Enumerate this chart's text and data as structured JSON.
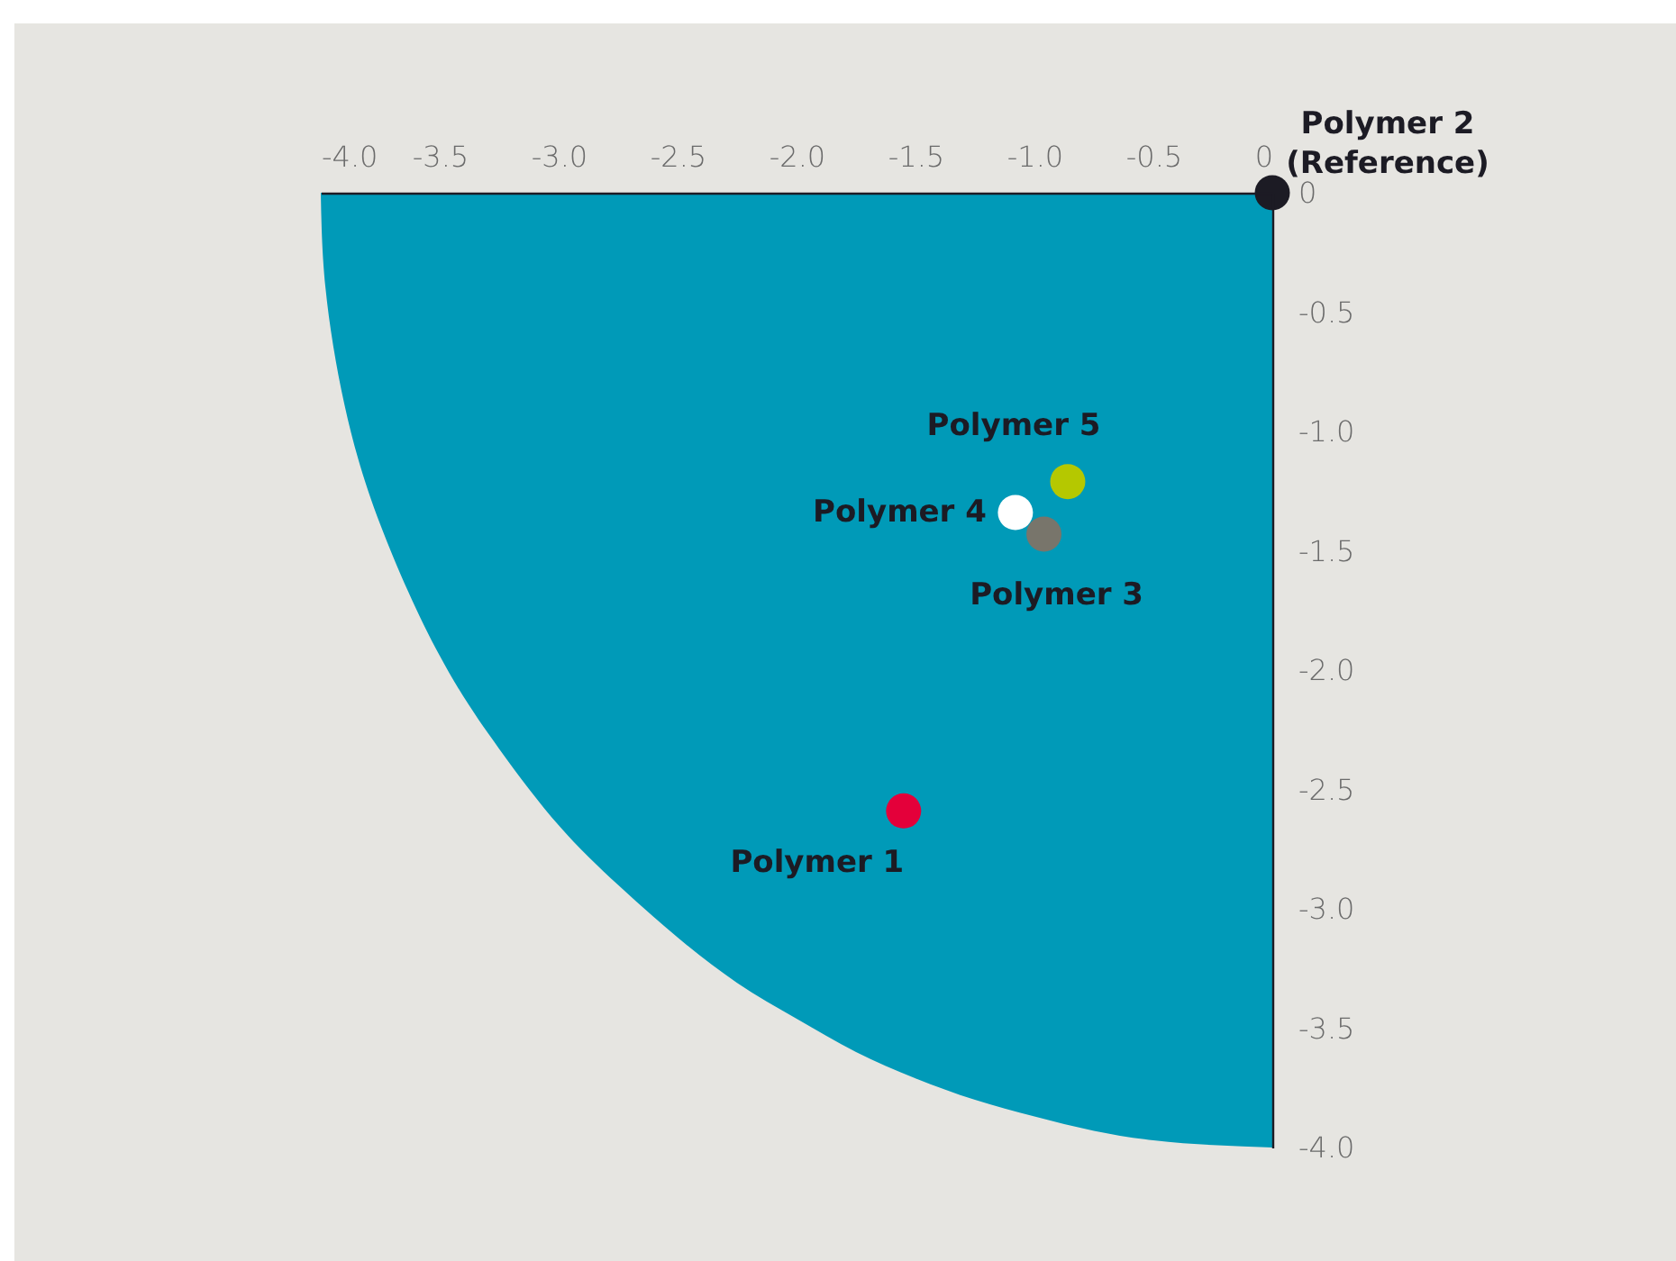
{
  "chart_data": {
    "type": "scatter",
    "grid": false,
    "legend": false,
    "xlim": [
      -4,
      0
    ],
    "ylim": [
      -4,
      0
    ],
    "xticks": [
      {
        "value": -4,
        "label": "-4.0"
      },
      {
        "value": -3.5,
        "label": "-3.5"
      },
      {
        "value": -3,
        "label": "-3.0"
      },
      {
        "value": -2.5,
        "label": "-2.5"
      },
      {
        "value": -2,
        "label": "-2.0"
      },
      {
        "value": -1.5,
        "label": "-1.5"
      },
      {
        "value": -1,
        "label": "-1.0"
      },
      {
        "value": -0.5,
        "label": "-0.5"
      },
      0
    ],
    "yticks": [
      0,
      {
        "value": -0.5,
        "label": "-0.5"
      },
      {
        "value": -1,
        "label": "-1.0"
      },
      {
        "value": -1.5,
        "label": "-1.5"
      },
      {
        "value": -2,
        "label": "-2.0"
      },
      {
        "value": -2.5,
        "label": "-2.5"
      },
      {
        "value": -3,
        "label": "-3.0"
      },
      {
        "value": -3.5,
        "label": "-3.5"
      },
      {
        "value": -4,
        "label": "-4.0"
      }
    ],
    "series": [
      {
        "name": "Polymer 1",
        "color": "#e4003a",
        "marker": "circle",
        "x": [
          -1.55
        ],
        "values": [
          -2.59
        ]
      },
      {
        "name": "Polymer 2\n(Reference)",
        "color": "#1c1b24",
        "marker": "circle",
        "x": [
          0
        ],
        "values": [
          0
        ]
      },
      {
        "name": "Polymer 3",
        "color": "#78756b",
        "marker": "circle",
        "x": [
          -0.96
        ],
        "values": [
          -1.43
        ]
      },
      {
        "name": "Polymer 4",
        "color": "#ffffff",
        "marker": "circle",
        "x": [
          -1.08
        ],
        "values": [
          -1.34
        ]
      },
      {
        "name": "Polymer 5",
        "color": "#b5c800",
        "marker": "circle",
        "x": [
          -0.86
        ],
        "values": [
          -1.21
        ]
      },
      {
        "type": "area",
        "color": "#009ab8",
        "marker": "none",
        "x": [
          -4,
          -3.98,
          -3.9,
          -3.75,
          -3.5,
          -3.25,
          -3,
          -2.75,
          -2.5,
          -2.25,
          -2,
          -1.75,
          -1.5,
          -1.25,
          -1,
          -0.75,
          -0.5,
          -0.25,
          0
        ],
        "values": [
          0,
          -0.4,
          -0.89,
          -1.39,
          -1.94,
          -2.33,
          -2.65,
          -2.9,
          -3.12,
          -3.31,
          -3.46,
          -3.6,
          -3.71,
          -3.8,
          -3.87,
          -3.93,
          -3.97,
          -3.99,
          -4
        ]
      }
    ]
  }
}
